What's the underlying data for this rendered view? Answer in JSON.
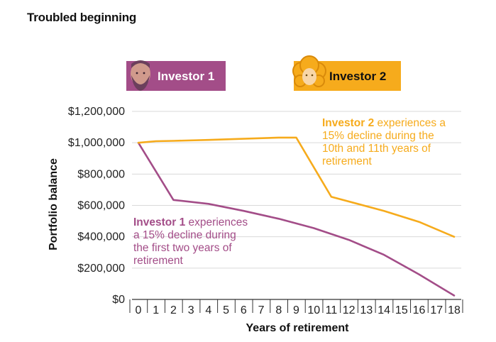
{
  "page": {
    "title": "Troubled beginning"
  },
  "colors": {
    "investor1": "#a34d88",
    "investor2": "#f6ab1c",
    "grid": "#d9d9d9",
    "axis": "#333333"
  },
  "legend": {
    "investor1": {
      "label": "Investor 1",
      "icon": "bearded-man-avatar-icon"
    },
    "investor2": {
      "label": "Investor 2",
      "icon": "curly-haired-woman-avatar-icon"
    }
  },
  "annotations": {
    "investor2": {
      "bold": "Investor 2",
      "lines": [
        " experiences a",
        "15% decline during the",
        "10th and 11th years of",
        "retirement"
      ]
    },
    "investor1": {
      "bold": "Investor 1",
      "lines": [
        " experiences",
        "a 15% decline during",
        "the first two years of",
        "retirement"
      ]
    }
  },
  "chart_data": {
    "type": "line",
    "xlabel": "Years of retirement",
    "ylabel": "Portfolio balance",
    "xlim": [
      0,
      18
    ],
    "ylim": [
      0,
      1200000
    ],
    "x_ticks": [
      "0",
      "1",
      "2",
      "3",
      "4",
      "5",
      "6",
      "7",
      "8",
      "9",
      "10",
      "11",
      "12",
      "13",
      "14",
      "15",
      "16",
      "17",
      "18"
    ],
    "y_ticks": [
      {
        "value": 0,
        "label": "$0"
      },
      {
        "value": 200000,
        "label": "$200,000"
      },
      {
        "value": 400000,
        "label": "$400,000"
      },
      {
        "value": 600000,
        "label": "$600,000"
      },
      {
        "value": 800000,
        "label": "$800,000"
      },
      {
        "value": 1000000,
        "label": "$1,000,000"
      },
      {
        "value": 1200000,
        "label": "$1,200,000"
      }
    ],
    "grid": "horizontal",
    "series": [
      {
        "name": "Investor 1",
        "color": "#a34d88",
        "x": [
          0,
          2,
          4,
          6,
          8,
          10,
          12,
          14,
          16,
          18
        ],
        "y": [
          1000000,
          635000,
          610000,
          565000,
          515000,
          455000,
          380000,
          285000,
          160000,
          25000
        ]
      },
      {
        "name": "Investor 2",
        "color": "#f6ab1c",
        "x": [
          0,
          1,
          2,
          4,
          6,
          8,
          9,
          11,
          14,
          16,
          18
        ],
        "y": [
          1000000,
          1010000,
          1012000,
          1018000,
          1025000,
          1033000,
          1033000,
          655000,
          565000,
          495000,
          400000
        ]
      }
    ]
  }
}
